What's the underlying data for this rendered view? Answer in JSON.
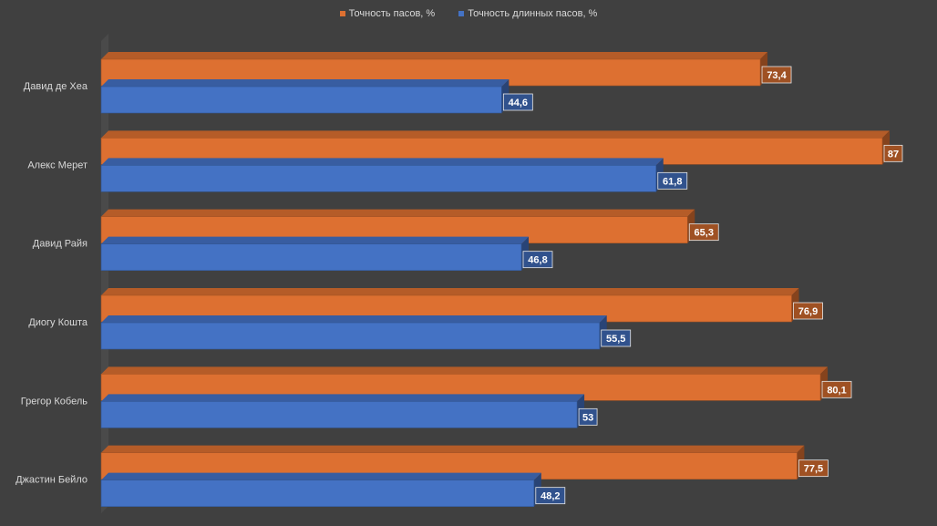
{
  "chart_data": {
    "type": "bar",
    "orientation": "horizontal",
    "title": "",
    "categories": [
      "Давид де Хеа",
      "Алекс Мерет",
      "Давид Райя",
      "Диогу Кошта",
      "Грегор Кобель",
      "Джастин Бейло"
    ],
    "series": [
      {
        "name": "Точность пасов, %",
        "color": "#dd7031",
        "values": [
          73.4,
          87,
          65.3,
          76.9,
          80.1,
          77.5
        ],
        "labels": [
          "73,4",
          "87",
          "65,3",
          "76,9",
          "80,1",
          "77,5"
        ]
      },
      {
        "name": "Точность длинных пасов, %",
        "color": "#4472c4",
        "values": [
          44.6,
          61.8,
          46.8,
          55.5,
          53,
          48.2
        ],
        "labels": [
          "44,6",
          "61,8",
          "46,8",
          "55,5",
          "53",
          "48,2"
        ]
      }
    ],
    "xlim": [
      0,
      87
    ],
    "legend_position": "top",
    "grid": false,
    "style": "3d-bar"
  }
}
